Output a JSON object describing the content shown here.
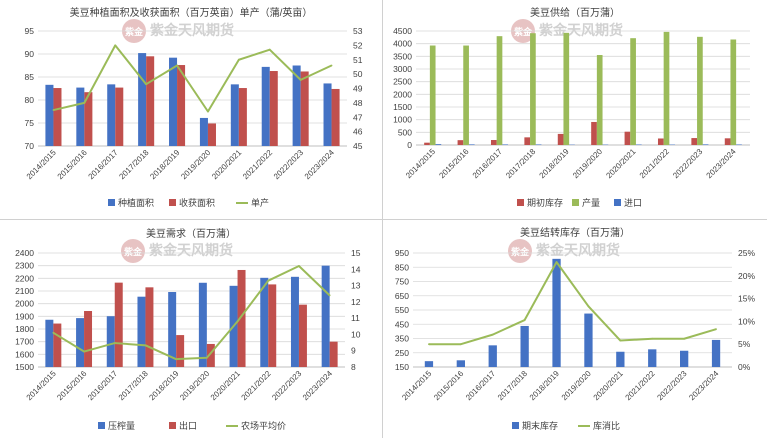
{
  "watermark": {
    "logo_text": "紫金",
    "brand_text": "紫金天风期货"
  },
  "colors": {
    "blue": "#4472c4",
    "red": "#c0504d",
    "green": "#9bbb59",
    "grid": "#d9d9d9"
  },
  "chart_data": [
    {
      "id": "area",
      "type": "bar",
      "title": "美豆种植面积及收获面积（百万英亩）单产（蒲/英亩）",
      "categories": [
        "2014/2015",
        "2015/2016",
        "2016/2017",
        "2017/2018",
        "2018/2019",
        "2019/2020",
        "2020/2021",
        "2021/2022",
        "2022/2023",
        "2023/2024"
      ],
      "series": [
        {
          "name": "种植面积",
          "kind": "bar",
          "axis": "left",
          "color": "#4472c4",
          "values": [
            83.3,
            82.7,
            83.4,
            90.2,
            89.2,
            76.1,
            83.4,
            87.2,
            87.5,
            83.6
          ]
        },
        {
          "name": "收获面积",
          "kind": "bar",
          "axis": "left",
          "color": "#c0504d",
          "values": [
            82.6,
            81.7,
            82.7,
            89.5,
            87.6,
            74.9,
            82.6,
            86.3,
            86.2,
            82.4
          ]
        },
        {
          "name": "单产",
          "kind": "line",
          "axis": "right",
          "color": "#9bbb59",
          "values": [
            47.5,
            48.0,
            52.0,
            49.3,
            50.6,
            47.4,
            51.0,
            51.7,
            49.6,
            50.6
          ]
        }
      ],
      "ylim": [
        70,
        95
      ],
      "yticks": [
        70,
        75,
        80,
        85,
        90,
        95
      ],
      "y2lim": [
        45,
        53
      ],
      "y2ticks": [
        45,
        46,
        47,
        48,
        49,
        50,
        51,
        52,
        53
      ],
      "legend": "bottom"
    },
    {
      "id": "supply",
      "type": "bar",
      "title": "美豆供给（百万蒲）",
      "categories": [
        "2014/2015",
        "2015/2016",
        "2016/2017",
        "2017/2018",
        "2018/2019",
        "2019/2020",
        "2020/2021",
        "2021/2022",
        "2022/2023",
        "2023/2024"
      ],
      "series": [
        {
          "name": "期初库存",
          "kind": "bar",
          "axis": "left",
          "color": "#c0504d",
          "values": [
            92,
            191,
            197,
            302,
            438,
            909,
            525,
            257,
            274,
            264
          ]
        },
        {
          "name": "产量",
          "kind": "bar",
          "axis": "left",
          "color": "#9bbb59",
          "values": [
            3927,
            3926,
            4296,
            4412,
            4428,
            3552,
            4216,
            4465,
            4270,
            4165
          ]
        },
        {
          "name": "进口",
          "kind": "bar",
          "axis": "left",
          "color": "#4472c4",
          "values": [
            33,
            24,
            22,
            22,
            14,
            15,
            20,
            16,
            25,
            21
          ]
        }
      ],
      "ylim": [
        0,
        4500
      ],
      "yticks": [
        0,
        500,
        1000,
        1500,
        2000,
        2500,
        3000,
        3500,
        4000,
        4500
      ],
      "legend": "bottom"
    },
    {
      "id": "demand",
      "type": "bar",
      "title": "美豆需求（百万蒲）",
      "categories": [
        "2014/2015",
        "2015/2016",
        "2016/2017",
        "2017/2018",
        "2018/2019",
        "2019/2020",
        "2020/2021",
        "2021/2022",
        "2022/2023",
        "2023/2024"
      ],
      "series": [
        {
          "name": "压榨量",
          "kind": "bar",
          "axis": "left",
          "color": "#4472c4",
          "values": [
            1873,
            1886,
            1901,
            2055,
            2092,
            2165,
            2141,
            2204,
            2212,
            2300
          ]
        },
        {
          "name": "出口",
          "kind": "bar",
          "axis": "left",
          "color": "#c0504d",
          "values": [
            1843,
            1942,
            2166,
            2129,
            1752,
            1682,
            2266,
            2152,
            1992,
            1700
          ]
        },
        {
          "name": "农场平均价",
          "kind": "line",
          "axis": "right",
          "color": "#9bbb59",
          "values": [
            10.1,
            8.95,
            9.47,
            9.33,
            8.48,
            8.57,
            10.8,
            13.3,
            14.2,
            12.4
          ]
        }
      ],
      "ylim": [
        1500,
        2400
      ],
      "yticks": [
        1500,
        1600,
        1700,
        1800,
        1900,
        2000,
        2100,
        2200,
        2300,
        2400
      ],
      "y2lim": [
        8,
        15
      ],
      "y2ticks": [
        8,
        9,
        10,
        11,
        12,
        13,
        14,
        15
      ],
      "legend": "bottom"
    },
    {
      "id": "stocks",
      "type": "bar",
      "title": "美豆结转库存（百万蒲）",
      "categories": [
        "2014/2015",
        "2015/2016",
        "2016/2017",
        "2017/2018",
        "2018/2019",
        "2019/2020",
        "2020/2021",
        "2021/2022",
        "2022/2023",
        "2023/2024"
      ],
      "series": [
        {
          "name": "期末库存",
          "kind": "bar",
          "axis": "left",
          "color": "#4472c4",
          "values": [
            191,
            197,
            302,
            438,
            909,
            525,
            257,
            274,
            264,
            340
          ]
        },
        {
          "name": "库消比",
          "kind": "line",
          "axis": "right",
          "color": "#9bbb59",
          "values": [
            5.0,
            5.0,
            7.1,
            10.3,
            23.0,
            13.3,
            5.8,
            6.2,
            6.2,
            8.3
          ]
        }
      ],
      "ylim": [
        150,
        950
      ],
      "yticks": [
        150,
        250,
        350,
        450,
        550,
        650,
        750,
        850,
        950
      ],
      "y2lim": [
        0,
        25
      ],
      "y2ticks": [
        0,
        5,
        10,
        15,
        20,
        25
      ],
      "y2format": "percent",
      "legend": "bottom"
    }
  ]
}
